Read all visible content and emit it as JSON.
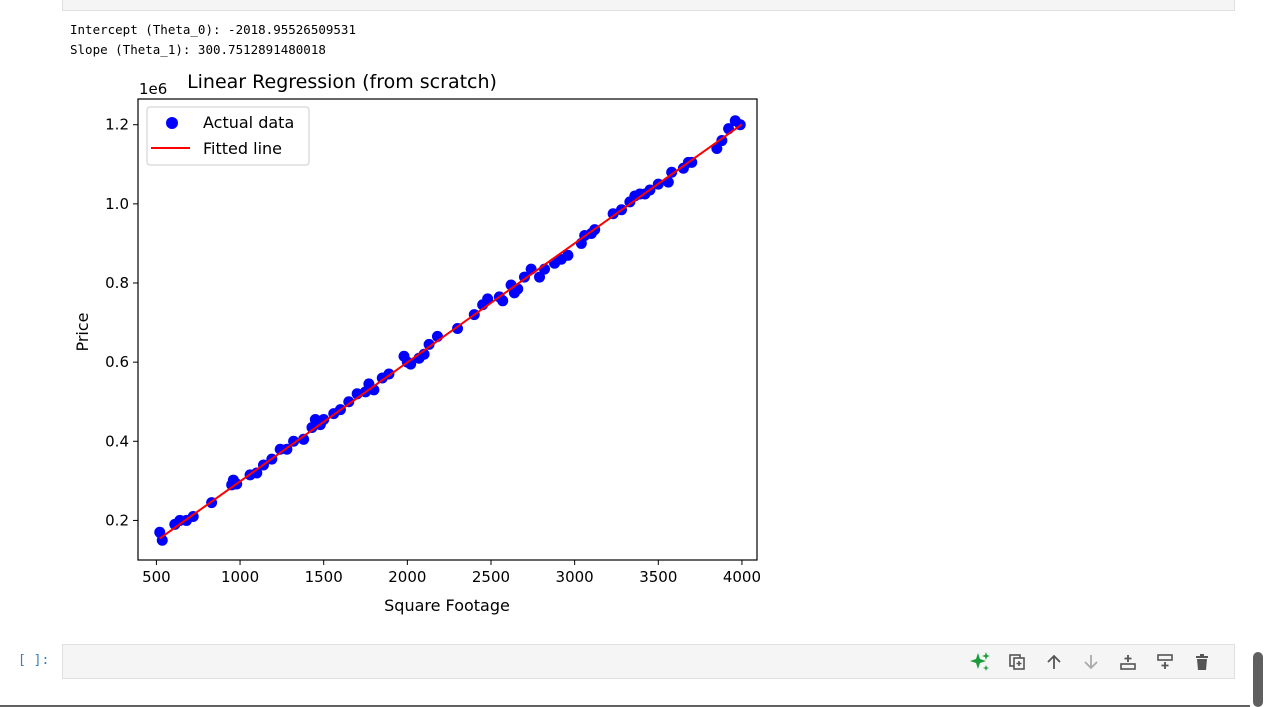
{
  "output": {
    "intercept_line": "Intercept (Theta_0): -2018.95526509531",
    "slope_line": "Slope (Theta_1): 300.7512891480018"
  },
  "chart_data": {
    "type": "scatter",
    "title": "Linear Regression (from scratch)",
    "xlabel": "Square Footage",
    "ylabel": "Price",
    "y_offset_label": "1e6",
    "xlim": [
      390,
      4090
    ],
    "ylim": [
      0.1,
      1.265
    ],
    "x_ticks": [
      500,
      1000,
      1500,
      2000,
      2500,
      3000,
      3500,
      4000
    ],
    "x_tick_labels": [
      "500",
      "1000",
      "1500",
      "2000",
      "2500",
      "3000",
      "3500",
      "4000"
    ],
    "y_ticks": [
      0.2,
      0.4,
      0.6,
      0.8,
      1.0,
      1.2
    ],
    "y_tick_labels": [
      "0.2",
      "0.4",
      "0.6",
      "0.8",
      "1.0",
      "1.2"
    ],
    "legend_position": "upper-left",
    "grid": false,
    "series": [
      {
        "name": "Actual data",
        "kind": "scatter",
        "color": "#0000ff",
        "points": [
          [
            520,
            0.17
          ],
          [
            535,
            0.15
          ],
          [
            610,
            0.19
          ],
          [
            640,
            0.2
          ],
          [
            680,
            0.2
          ],
          [
            720,
            0.21
          ],
          [
            830,
            0.245
          ],
          [
            950,
            0.29
          ],
          [
            960,
            0.302
          ],
          [
            980,
            0.292
          ],
          [
            1060,
            0.315
          ],
          [
            1100,
            0.32
          ],
          [
            1140,
            0.34
          ],
          [
            1190,
            0.355
          ],
          [
            1240,
            0.38
          ],
          [
            1280,
            0.38
          ],
          [
            1320,
            0.4
          ],
          [
            1380,
            0.405
          ],
          [
            1430,
            0.435
          ],
          [
            1450,
            0.455
          ],
          [
            1480,
            0.442
          ],
          [
            1500,
            0.455
          ],
          [
            1560,
            0.47
          ],
          [
            1600,
            0.48
          ],
          [
            1650,
            0.5
          ],
          [
            1700,
            0.52
          ],
          [
            1750,
            0.525
          ],
          [
            1770,
            0.545
          ],
          [
            1800,
            0.53
          ],
          [
            1850,
            0.56
          ],
          [
            1890,
            0.57
          ],
          [
            1980,
            0.615
          ],
          [
            2000,
            0.6
          ],
          [
            2020,
            0.595
          ],
          [
            2070,
            0.61
          ],
          [
            2100,
            0.62
          ],
          [
            2130,
            0.645
          ],
          [
            2180,
            0.665
          ],
          [
            2300,
            0.685
          ],
          [
            2400,
            0.72
          ],
          [
            2450,
            0.745
          ],
          [
            2480,
            0.76
          ],
          [
            2550,
            0.765
          ],
          [
            2570,
            0.755
          ],
          [
            2620,
            0.795
          ],
          [
            2640,
            0.775
          ],
          [
            2660,
            0.785
          ],
          [
            2700,
            0.815
          ],
          [
            2740,
            0.835
          ],
          [
            2790,
            0.815
          ],
          [
            2820,
            0.835
          ],
          [
            2880,
            0.85
          ],
          [
            2920,
            0.86
          ],
          [
            2960,
            0.87
          ],
          [
            3040,
            0.9
          ],
          [
            3060,
            0.92
          ],
          [
            3100,
            0.925
          ],
          [
            3120,
            0.935
          ],
          [
            3230,
            0.975
          ],
          [
            3280,
            0.985
          ],
          [
            3330,
            1.005
          ],
          [
            3360,
            1.02
          ],
          [
            3390,
            1.025
          ],
          [
            3420,
            1.025
          ],
          [
            3450,
            1.035
          ],
          [
            3500,
            1.05
          ],
          [
            3560,
            1.055
          ],
          [
            3580,
            1.08
          ],
          [
            3650,
            1.09
          ],
          [
            3680,
            1.105
          ],
          [
            3700,
            1.105
          ],
          [
            3850,
            1.14
          ],
          [
            3880,
            1.16
          ],
          [
            3920,
            1.19
          ],
          [
            3960,
            1.21
          ],
          [
            3990,
            1.2
          ]
        ]
      },
      {
        "name": "Fitted line",
        "kind": "line",
        "color": "#ff0000",
        "x": [
          520,
          4000
        ],
        "y": [
          0.15437,
          1.20098
        ]
      }
    ]
  },
  "input_cell": {
    "prompt": "[ ]:"
  },
  "toolbar_icons": [
    "sparkle-icon",
    "duplicate-icon",
    "arrow-up-icon",
    "arrow-down-icon",
    "insert-above-icon",
    "insert-below-icon",
    "trash-icon"
  ],
  "colors": {
    "prompt": "#307fc1",
    "sparkle": "#1a9c3c",
    "cell_bg": "#f5f5f5"
  }
}
